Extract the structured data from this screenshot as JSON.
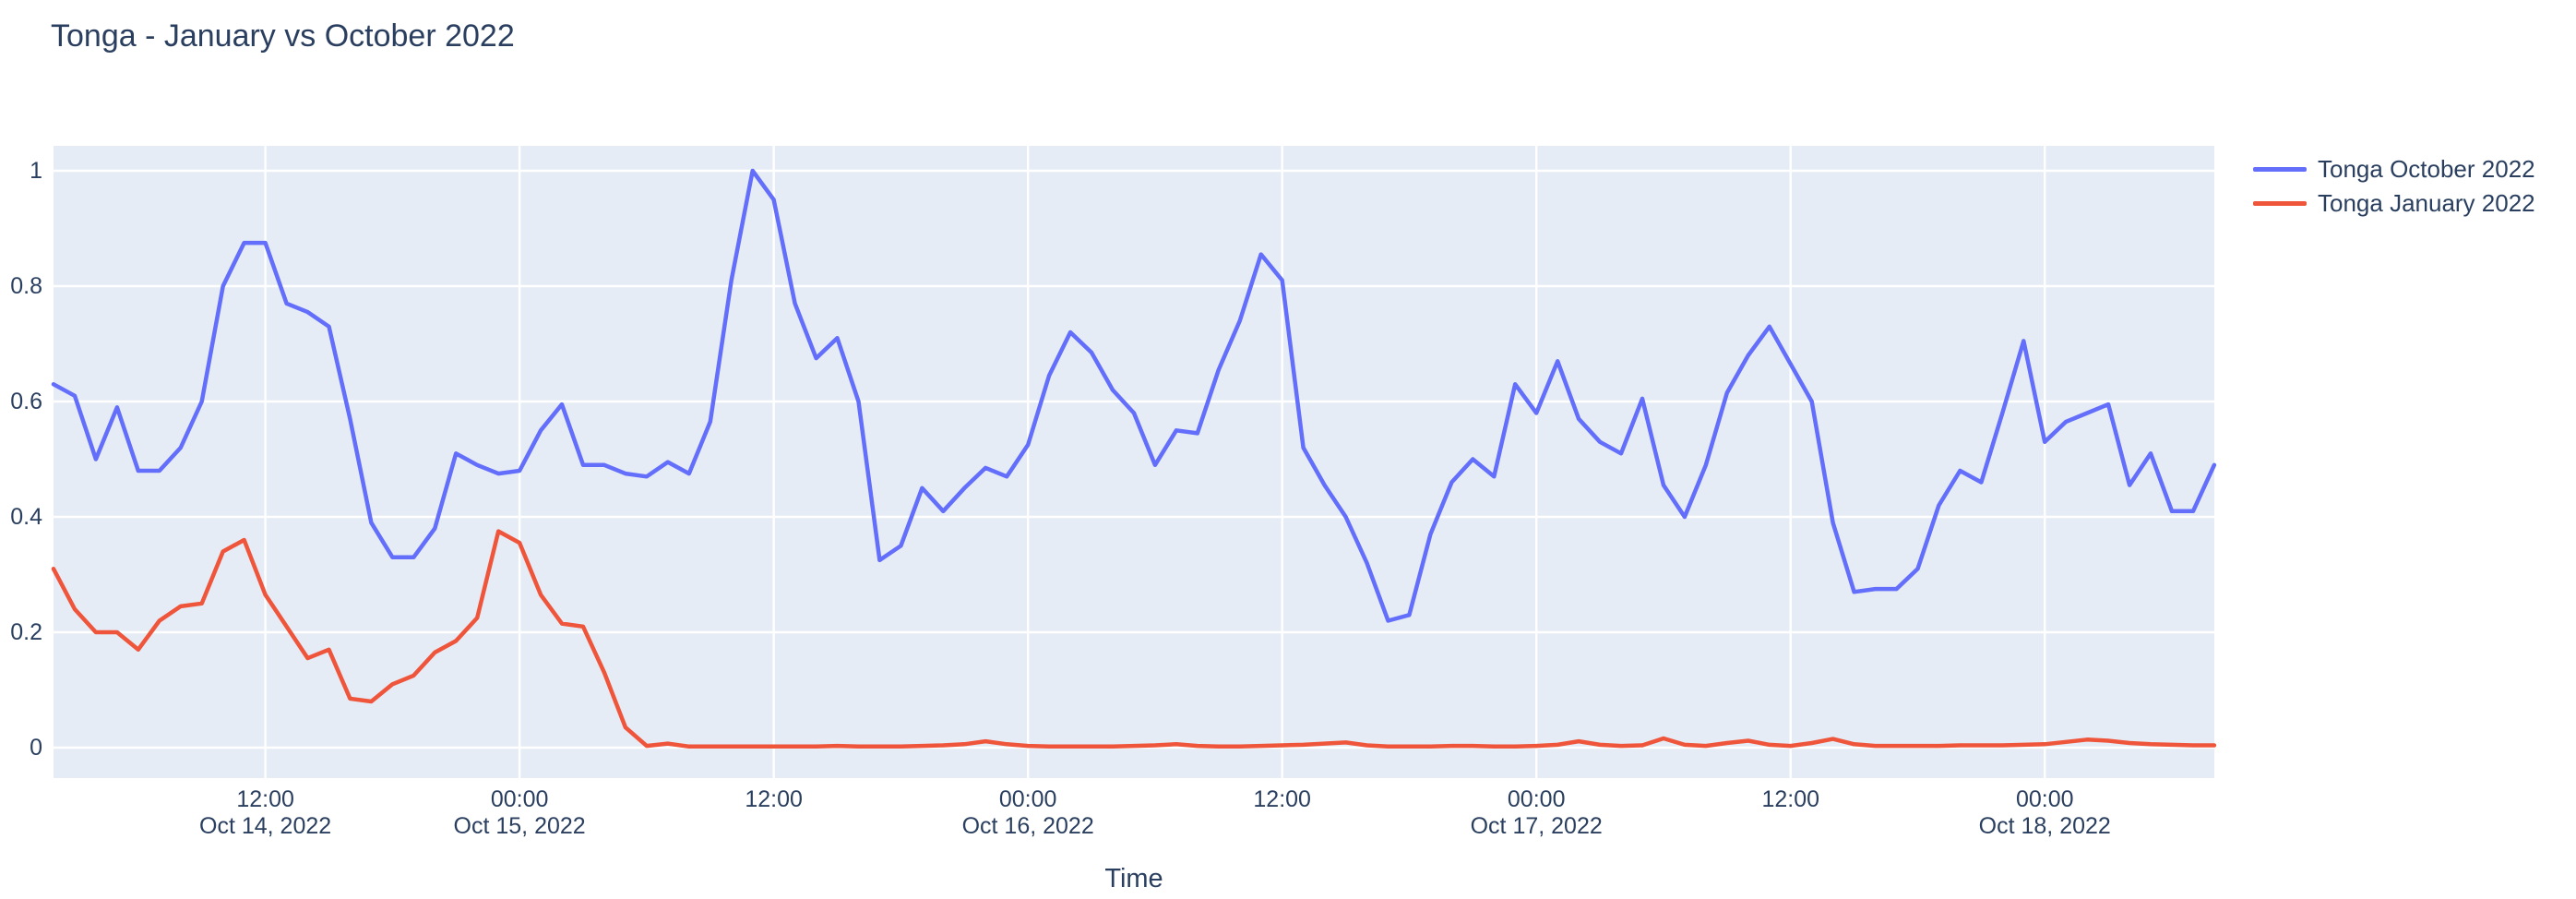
{
  "title": "Tonga - January vs October 2022",
  "colors": {
    "october_line": "#636efa",
    "january_line": "#ef553b",
    "plot_background": "#e5ecf6",
    "gridline": "#ffffff",
    "text": "#2a3f5f"
  },
  "legend": {
    "items": [
      {
        "label": "Tonga October 2022",
        "color": "#636efa"
      },
      {
        "label": "Tonga January 2022",
        "color": "#ef553b"
      }
    ]
  },
  "x_axis": {
    "title": "Time",
    "ticks": [
      {
        "label": "12:00",
        "sublabel": "Oct 14, 2022",
        "hour_offset": 10
      },
      {
        "label": "00:00",
        "sublabel": "Oct 15, 2022",
        "hour_offset": 22
      },
      {
        "label": "12:00",
        "sublabel": "",
        "hour_offset": 34
      },
      {
        "label": "00:00",
        "sublabel": "Oct 16, 2022",
        "hour_offset": 46
      },
      {
        "label": "12:00",
        "sublabel": "",
        "hour_offset": 58
      },
      {
        "label": "00:00",
        "sublabel": "Oct 17, 2022",
        "hour_offset": 70
      },
      {
        "label": "12:00",
        "sublabel": "",
        "hour_offset": 82
      },
      {
        "label": "00:00",
        "sublabel": "Oct 18, 2022",
        "hour_offset": 94
      }
    ]
  },
  "y_axis": {
    "tick_labels": [
      "0",
      "0.2",
      "0.4",
      "0.6",
      "0.8",
      "1"
    ],
    "tick_values": [
      0,
      0.2,
      0.4,
      0.6,
      0.8,
      1
    ]
  },
  "chart_data": {
    "type": "line",
    "title": "Tonga - January vs October 2022",
    "xlabel": "Time",
    "ylabel": "",
    "x_start": "2022-10-14 02:00",
    "x_interval_hours": 1,
    "x_end": "2022-10-18 08:00",
    "ylim": [
      0,
      1
    ],
    "grid": true,
    "legend_position": "top-right-outside",
    "series": [
      {
        "name": "Tonga October 2022",
        "color": "#636efa",
        "values": [
          0.63,
          0.61,
          0.5,
          0.59,
          0.48,
          0.48,
          0.52,
          0.6,
          0.8,
          0.875,
          0.875,
          0.77,
          0.755,
          0.73,
          0.57,
          0.39,
          0.33,
          0.33,
          0.38,
          0.51,
          0.49,
          0.475,
          0.48,
          0.55,
          0.595,
          0.49,
          0.49,
          0.475,
          0.47,
          0.495,
          0.475,
          0.565,
          0.81,
          1.0,
          0.95,
          0.77,
          0.675,
          0.71,
          0.6,
          0.325,
          0.35,
          0.45,
          0.41,
          0.45,
          0.485,
          0.47,
          0.525,
          0.645,
          0.72,
          0.685,
          0.62,
          0.58,
          0.49,
          0.55,
          0.545,
          0.655,
          0.74,
          0.855,
          0.81,
          0.52,
          0.455,
          0.4,
          0.32,
          0.22,
          0.23,
          0.37,
          0.46,
          0.5,
          0.47,
          0.63,
          0.58,
          0.67,
          0.57,
          0.53,
          0.51,
          0.605,
          0.455,
          0.4,
          0.49,
          0.615,
          0.68,
          0.73,
          0.665,
          0.6,
          0.39,
          0.27,
          0.275,
          0.275,
          0.31,
          0.42,
          0.48,
          0.46,
          0.58,
          0.705,
          0.53,
          0.565,
          0.58,
          0.595,
          0.455,
          0.51,
          0.41,
          0.41,
          0.49
        ]
      },
      {
        "name": "Tonga January 2022",
        "color": "#ef553b",
        "values": [
          0.31,
          0.24,
          0.2,
          0.2,
          0.17,
          0.22,
          0.245,
          0.25,
          0.34,
          0.36,
          0.265,
          0.21,
          0.155,
          0.17,
          0.085,
          0.08,
          0.11,
          0.125,
          0.165,
          0.185,
          0.225,
          0.375,
          0.355,
          0.265,
          0.215,
          0.21,
          0.13,
          0.035,
          0.003,
          0.007,
          0.002,
          0.002,
          0.002,
          0.002,
          0.002,
          0.002,
          0.002,
          0.003,
          0.002,
          0.002,
          0.002,
          0.003,
          0.004,
          0.006,
          0.011,
          0.006,
          0.003,
          0.002,
          0.002,
          0.002,
          0.002,
          0.003,
          0.004,
          0.006,
          0.003,
          0.002,
          0.002,
          0.003,
          0.004,
          0.005,
          0.007,
          0.009,
          0.004,
          0.002,
          0.002,
          0.002,
          0.003,
          0.003,
          0.002,
          0.002,
          0.003,
          0.005,
          0.011,
          0.005,
          0.003,
          0.004,
          0.016,
          0.005,
          0.003,
          0.008,
          0.012,
          0.005,
          0.003,
          0.008,
          0.015,
          0.006,
          0.003,
          0.003,
          0.003,
          0.003,
          0.004,
          0.004,
          0.004,
          0.005,
          0.006,
          0.01,
          0.014,
          0.012,
          0.008,
          0.006,
          0.005,
          0.004,
          0.004
        ]
      }
    ]
  }
}
